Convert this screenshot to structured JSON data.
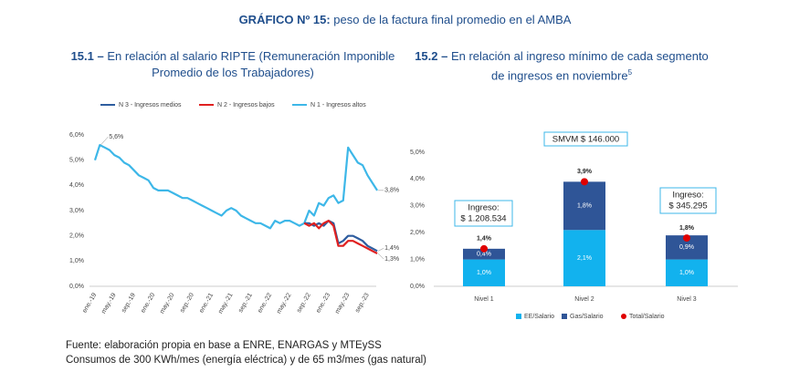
{
  "header": {
    "label": "GRÁFICO Nº 15:",
    "title": "peso de la factura final promedio en el AMBA"
  },
  "chart_data": [
    {
      "type": "line",
      "subtitle_number": "15.1 –",
      "subtitle": "En relación al salario RIPTE (Remuneración Imponible Promedio de los Trabajadores)",
      "categories": [
        "ene.-19",
        null,
        null,
        null,
        "may.-19",
        null,
        null,
        null,
        "sep.-19",
        null,
        null,
        null,
        "ene.-20",
        null,
        null,
        null,
        "may.-20",
        null,
        null,
        null,
        "sep.-20",
        null,
        null,
        null,
        "ene.-21",
        null,
        null,
        null,
        "may.-21",
        null,
        null,
        null,
        "sep.-21",
        null,
        null,
        null,
        "ene.-22",
        null,
        null,
        null,
        "may.-22",
        null,
        null,
        null,
        "sep.-22",
        null,
        null,
        null,
        "ene.-23",
        null,
        null,
        null,
        "may.-23",
        null,
        null,
        null,
        "sep.-23",
        null,
        null
      ],
      "ylim": [
        0,
        6
      ],
      "yticks": [
        {
          "value": 0,
          "label": "0,0%"
        },
        {
          "value": 1,
          "label": "1,0%"
        },
        {
          "value": 2,
          "label": "2,0%"
        },
        {
          "value": 3,
          "label": "3,0%"
        },
        {
          "value": 4,
          "label": "4,0%"
        },
        {
          "value": 5,
          "label": "5,0%"
        },
        {
          "value": 6,
          "label": "6,0%"
        }
      ],
      "legend": "top",
      "series": [
        {
          "name": "N 3 - Ingresos medios",
          "color": "#2e5d9f",
          "values": [
            null,
            null,
            null,
            null,
            null,
            null,
            null,
            null,
            null,
            null,
            null,
            null,
            null,
            null,
            null,
            null,
            null,
            null,
            null,
            null,
            null,
            null,
            null,
            null,
            null,
            null,
            null,
            null,
            null,
            null,
            null,
            null,
            null,
            null,
            null,
            null,
            null,
            null,
            null,
            null,
            null,
            null,
            null,
            2.5,
            2.5,
            2.4,
            2.5,
            2.4,
            2.6,
            2.5,
            1.7,
            1.8,
            2.0,
            2.0,
            1.9,
            1.8,
            1.6,
            1.5,
            1.4
          ],
          "value_labels": [
            null,
            null,
            null,
            null,
            null,
            null,
            null,
            null,
            null,
            null,
            null,
            null,
            null,
            null,
            null,
            null,
            null,
            null,
            null,
            null,
            null,
            null,
            null,
            null,
            null,
            null,
            null,
            null,
            null,
            null,
            null,
            null,
            null,
            null,
            null,
            null,
            null,
            null,
            null,
            null,
            null,
            null,
            null,
            null,
            null,
            null,
            null,
            null,
            null,
            null,
            null,
            null,
            null,
            null,
            null,
            null,
            null,
            null,
            "1,4%"
          ]
        },
        {
          "name": "N 2 - Ingresos bajos",
          "color": "#e02020",
          "values": [
            null,
            null,
            null,
            null,
            null,
            null,
            null,
            null,
            null,
            null,
            null,
            null,
            null,
            null,
            null,
            null,
            null,
            null,
            null,
            null,
            null,
            null,
            null,
            null,
            null,
            null,
            null,
            null,
            null,
            null,
            null,
            null,
            null,
            null,
            null,
            null,
            null,
            null,
            null,
            null,
            null,
            null,
            null,
            2.5,
            2.4,
            2.5,
            2.3,
            2.5,
            2.6,
            2.4,
            1.6,
            1.6,
            1.8,
            1.8,
            1.7,
            1.6,
            1.5,
            1.4,
            1.3
          ],
          "value_labels": [
            null,
            null,
            null,
            null,
            null,
            null,
            null,
            null,
            null,
            null,
            null,
            null,
            null,
            null,
            null,
            null,
            null,
            null,
            null,
            null,
            null,
            null,
            null,
            null,
            null,
            null,
            null,
            null,
            null,
            null,
            null,
            null,
            null,
            null,
            null,
            null,
            null,
            null,
            null,
            null,
            null,
            null,
            null,
            null,
            null,
            null,
            null,
            null,
            null,
            null,
            null,
            null,
            null,
            null,
            null,
            null,
            null,
            null,
            "1,3%"
          ]
        },
        {
          "name": "N 1 - Ingresos altos",
          "color": "#3db7e8",
          "values": [
            5.0,
            5.6,
            5.5,
            5.4,
            5.2,
            5.1,
            4.9,
            4.8,
            4.6,
            4.4,
            4.3,
            4.2,
            3.9,
            3.8,
            3.8,
            3.8,
            3.7,
            3.6,
            3.5,
            3.5,
            3.4,
            3.3,
            3.2,
            3.1,
            3.0,
            2.9,
            2.8,
            3.0,
            3.1,
            3.0,
            2.8,
            2.7,
            2.6,
            2.5,
            2.5,
            2.4,
            2.3,
            2.6,
            2.5,
            2.6,
            2.6,
            2.5,
            2.4,
            2.5,
            3.0,
            2.8,
            3.3,
            3.2,
            3.5,
            3.6,
            3.3,
            3.4,
            5.5,
            5.2,
            4.9,
            4.8,
            4.4,
            4.1,
            3.8
          ],
          "value_labels": [
            null,
            "5,6%",
            null,
            null,
            null,
            null,
            null,
            null,
            null,
            null,
            null,
            null,
            null,
            null,
            null,
            null,
            null,
            null,
            null,
            null,
            null,
            null,
            null,
            null,
            null,
            null,
            null,
            null,
            null,
            null,
            null,
            null,
            null,
            null,
            null,
            null,
            null,
            null,
            null,
            null,
            null,
            null,
            null,
            null,
            null,
            null,
            null,
            null,
            null,
            null,
            null,
            null,
            null,
            null,
            null,
            null,
            null,
            null,
            "3,8%"
          ]
        }
      ]
    },
    {
      "type": "stacked_bar",
      "subtitle_number": "15.2 –",
      "subtitle": "En relación al ingreso mínimo de cada segmento de ingresos en noviembre",
      "subtitle_note": "5",
      "categories": [
        "Nivel 1",
        "Nivel 2",
        "Nivel 3"
      ],
      "ylim": [
        0,
        5
      ],
      "yticks": [
        {
          "value": 0,
          "label": "0,0%"
        },
        {
          "value": 1,
          "label": "1,0%"
        },
        {
          "value": 2,
          "label": "2,0%"
        },
        {
          "value": 3,
          "label": "3,0%"
        },
        {
          "value": 4,
          "label": "4,0%"
        },
        {
          "value": 5,
          "label": "5,0%"
        }
      ],
      "legend": "bottom",
      "series": [
        {
          "name": "EE/Salario",
          "color": "#12b2ee",
          "values": [
            1.0,
            2.1,
            1.0
          ],
          "value_labels": [
            "1,0%",
            "2,1%",
            "1,0%"
          ]
        },
        {
          "name": "Gas/Salario",
          "color": "#2f5597",
          "values": [
            0.4,
            1.8,
            0.9
          ],
          "value_labels": [
            "0,4%",
            "1,8%",
            "0,9%"
          ]
        },
        {
          "name": "Total/Salario",
          "color": "#e00000",
          "kind": "dot",
          "values": [
            1.4,
            3.9,
            1.8
          ],
          "value_labels": [
            "1,4%",
            "3,9%",
            "1,8%"
          ]
        }
      ],
      "reference_label": "SMVM $ 146.000",
      "income_labels": [
        [
          "Ingreso:",
          "$ 1.208.534"
        ],
        null,
        [
          "Ingreso:",
          "$ 345.295"
        ]
      ]
    }
  ],
  "source": [
    "Fuente: elaboración propia en base a ENRE, ENARGAS y MTEySS",
    "Consumos de 300 KWh/mes (energía eléctrica) y de 65 m3/mes (gas natural)"
  ]
}
